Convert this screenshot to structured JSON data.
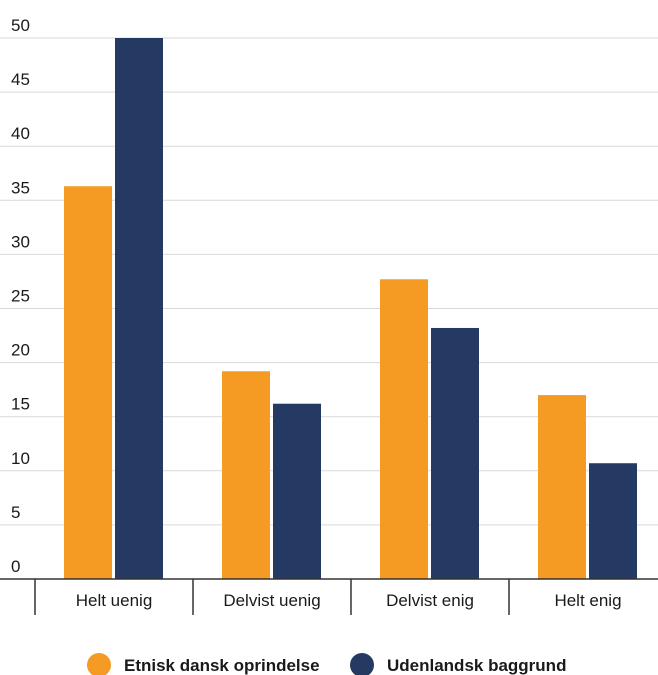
{
  "chart_data": {
    "type": "bar",
    "categories": [
      "Helt uenig",
      "Delvist uenig",
      "Delvist enig",
      "Helt enig"
    ],
    "series": [
      {
        "name": "Etnisk dansk oprindelse",
        "color": "#f59a23",
        "values": [
          36.3,
          19.2,
          27.7,
          17.0
        ]
      },
      {
        "name": "Udenlandsk baggrund",
        "color": "#243a63",
        "values": [
          50.0,
          16.2,
          23.2,
          10.7
        ]
      }
    ],
    "y_ticks": [
      "0",
      "5",
      "10",
      "15",
      "20",
      "25",
      "30",
      "35",
      "40",
      "45",
      "50"
    ],
    "ylim": [
      0,
      50
    ],
    "grid": true,
    "legend_position": "bottom-center"
  }
}
